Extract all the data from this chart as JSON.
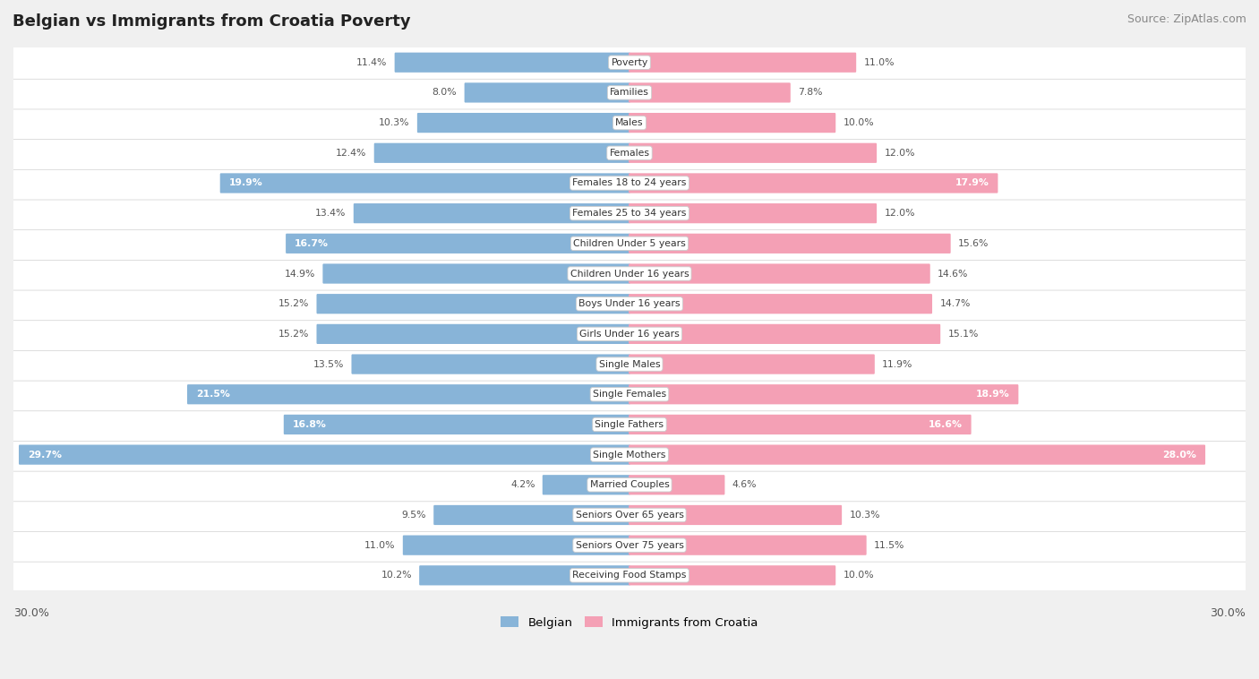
{
  "title": "Belgian vs Immigrants from Croatia Poverty",
  "source": "Source: ZipAtlas.com",
  "categories": [
    "Poverty",
    "Families",
    "Males",
    "Females",
    "Females 18 to 24 years",
    "Females 25 to 34 years",
    "Children Under 5 years",
    "Children Under 16 years",
    "Boys Under 16 years",
    "Girls Under 16 years",
    "Single Males",
    "Single Females",
    "Single Fathers",
    "Single Mothers",
    "Married Couples",
    "Seniors Over 65 years",
    "Seniors Over 75 years",
    "Receiving Food Stamps"
  ],
  "belgian": [
    11.4,
    8.0,
    10.3,
    12.4,
    19.9,
    13.4,
    16.7,
    14.9,
    15.2,
    15.2,
    13.5,
    21.5,
    16.8,
    29.7,
    4.2,
    9.5,
    11.0,
    10.2
  ],
  "croatia": [
    11.0,
    7.8,
    10.0,
    12.0,
    17.9,
    12.0,
    15.6,
    14.6,
    14.7,
    15.1,
    11.9,
    18.9,
    16.6,
    28.0,
    4.6,
    10.3,
    11.5,
    10.0
  ],
  "belgian_color": "#88b4d8",
  "croatia_color": "#f4a0b5",
  "axis_max": 30.0,
  "background_color": "#f0f0f0",
  "bar_row_color": "#ffffff",
  "legend_belgian": "Belgian",
  "legend_croatia": "Immigrants from Croatia",
  "threshold_inside": 16.0
}
